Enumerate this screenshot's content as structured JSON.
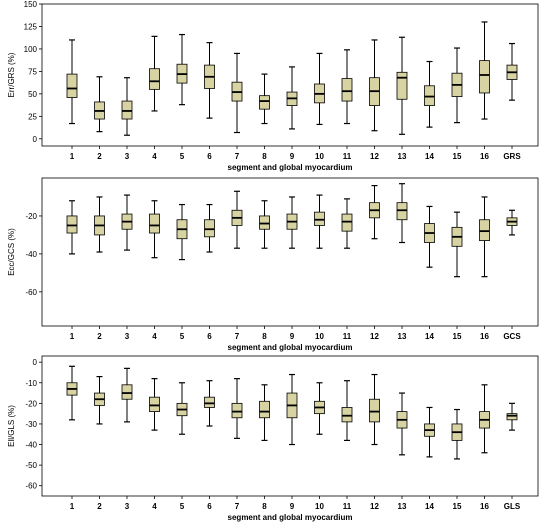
{
  "style": {
    "box_fill": "#d8d3a2",
    "box_stroke": "#000000",
    "median_color": "#000000",
    "frame_color": "#000000"
  },
  "chart_data": [
    {
      "type": "boxplot",
      "xlabel": "segment and global myocardium",
      "ylabel": "Err/GRS (%)",
      "ylim": [
        -8,
        150
      ],
      "yticks": [
        0,
        25,
        50,
        75,
        100,
        125,
        150
      ],
      "grid": false,
      "categories": [
        "1",
        "2",
        "3",
        "4",
        "5",
        "6",
        "7",
        "8",
        "9",
        "10",
        "11",
        "12",
        "13",
        "14",
        "15",
        "16",
        "GRS"
      ],
      "boxes": [
        {
          "min": 17,
          "q1": 46,
          "median": 56,
          "q3": 72,
          "max": 110
        },
        {
          "min": 8,
          "q1": 22,
          "median": 31,
          "q3": 41,
          "max": 69
        },
        {
          "min": 4,
          "q1": 22,
          "median": 31,
          "q3": 42,
          "max": 68
        },
        {
          "min": 31,
          "q1": 55,
          "median": 64,
          "q3": 78,
          "max": 114
        },
        {
          "min": 38,
          "q1": 62,
          "median": 72,
          "q3": 83,
          "max": 116
        },
        {
          "min": 23,
          "q1": 56,
          "median": 69,
          "q3": 82,
          "max": 107
        },
        {
          "min": 7,
          "q1": 42,
          "median": 52,
          "q3": 63,
          "max": 95
        },
        {
          "min": 17,
          "q1": 33,
          "median": 42,
          "q3": 48,
          "max": 72
        },
        {
          "min": 11,
          "q1": 37,
          "median": 45,
          "q3": 52,
          "max": 80
        },
        {
          "min": 16,
          "q1": 40,
          "median": 50,
          "q3": 61,
          "max": 95
        },
        {
          "min": 17,
          "q1": 42,
          "median": 53,
          "q3": 67,
          "max": 99
        },
        {
          "min": 9,
          "q1": 37,
          "median": 53,
          "q3": 68,
          "max": 110
        },
        {
          "min": 5,
          "q1": 44,
          "median": 68,
          "q3": 74,
          "max": 113
        },
        {
          "min": 13,
          "q1": 37,
          "median": 47,
          "q3": 59,
          "max": 86
        },
        {
          "min": 18,
          "q1": 47,
          "median": 60,
          "q3": 73,
          "max": 101
        },
        {
          "min": 22,
          "q1": 51,
          "median": 71,
          "q3": 87,
          "max": 130
        },
        {
          "min": 43,
          "q1": 66,
          "median": 74,
          "q3": 82,
          "max": 106
        }
      ]
    },
    {
      "type": "boxplot",
      "xlabel": "segment and global myocardium",
      "ylabel": "Ecc/GCS (%)",
      "ylim": [
        -78,
        0
      ],
      "yticks": [
        -60,
        -40,
        -20
      ],
      "grid": false,
      "categories": [
        "1",
        "2",
        "3",
        "4",
        "5",
        "6",
        "7",
        "8",
        "9",
        "10",
        "11",
        "12",
        "13",
        "14",
        "15",
        "16",
        "GCS"
      ],
      "boxes": [
        {
          "min": -40,
          "q1": -29,
          "median": -25,
          "q3": -20,
          "max": -12
        },
        {
          "min": -39,
          "q1": -30,
          "median": -25,
          "q3": -20,
          "max": -10
        },
        {
          "min": -38,
          "q1": -27,
          "median": -23,
          "q3": -19,
          "max": -9
        },
        {
          "min": -42,
          "q1": -29,
          "median": -25,
          "q3": -19,
          "max": -12
        },
        {
          "min": -43,
          "q1": -32,
          "median": -27,
          "q3": -22,
          "max": -14
        },
        {
          "min": -39,
          "q1": -31,
          "median": -27,
          "q3": -22,
          "max": -14
        },
        {
          "min": -37,
          "q1": -25,
          "median": -21,
          "q3": -17,
          "max": -7
        },
        {
          "min": -37,
          "q1": -27,
          "median": -24,
          "q3": -20,
          "max": -12
        },
        {
          "min": -37,
          "q1": -27,
          "median": -23,
          "q3": -19,
          "max": -10
        },
        {
          "min": -37,
          "q1": -25,
          "median": -22,
          "q3": -18,
          "max": -9
        },
        {
          "min": -37,
          "q1": -28,
          "median": -23,
          "q3": -19,
          "max": -11
        },
        {
          "min": -32,
          "q1": -21,
          "median": -17,
          "q3": -13,
          "max": -4
        },
        {
          "min": -34,
          "q1": -22,
          "median": -17,
          "q3": -13,
          "max": -3
        },
        {
          "min": -47,
          "q1": -34,
          "median": -29,
          "q3": -24,
          "max": -15
        },
        {
          "min": -52,
          "q1": -36,
          "median": -31,
          "q3": -26,
          "max": -18
        },
        {
          "min": -52,
          "q1": -33,
          "median": -28,
          "q3": -22,
          "max": -10
        },
        {
          "min": -30,
          "q1": -25,
          "median": -23,
          "q3": -21,
          "max": -17
        }
      ]
    },
    {
      "type": "boxplot",
      "xlabel": "segment and global myocardium",
      "ylabel": "Ell/GLS (%)",
      "ylim": [
        -65,
        3
      ],
      "yticks": [
        -60,
        -50,
        -40,
        -30,
        -20,
        -10,
        0
      ],
      "grid": false,
      "categories": [
        "1",
        "2",
        "3",
        "4",
        "5",
        "6",
        "7",
        "8",
        "9",
        "10",
        "11",
        "12",
        "13",
        "14",
        "15",
        "16",
        "GLS"
      ],
      "boxes": [
        {
          "min": -28,
          "q1": -16,
          "median": -13,
          "q3": -10,
          "max": -2
        },
        {
          "min": -30,
          "q1": -21,
          "median": -18,
          "q3": -15,
          "max": -7
        },
        {
          "min": -29,
          "q1": -18,
          "median": -15,
          "q3": -11,
          "max": -3
        },
        {
          "min": -33,
          "q1": -24,
          "median": -21,
          "q3": -17,
          "max": -8
        },
        {
          "min": -35,
          "q1": -26,
          "median": -23,
          "q3": -20,
          "max": -10
        },
        {
          "min": -31,
          "q1": -22,
          "median": -20,
          "q3": -17,
          "max": -9
        },
        {
          "min": -37,
          "q1": -27,
          "median": -24,
          "q3": -20,
          "max": -8
        },
        {
          "min": -38,
          "q1": -27,
          "median": -24,
          "q3": -19,
          "max": -11
        },
        {
          "min": -40,
          "q1": -27,
          "median": -21,
          "q3": -15,
          "max": -6
        },
        {
          "min": -35,
          "q1": -25,
          "median": -22,
          "q3": -19,
          "max": -10
        },
        {
          "min": -38,
          "q1": -29,
          "median": -26,
          "q3": -22,
          "max": -9
        },
        {
          "min": -40,
          "q1": -29,
          "median": -24,
          "q3": -18,
          "max": -6
        },
        {
          "min": -45,
          "q1": -32,
          "median": -28,
          "q3": -24,
          "max": -15
        },
        {
          "min": -46,
          "q1": -36,
          "median": -33,
          "q3": -30,
          "max": -22
        },
        {
          "min": -47,
          "q1": -38,
          "median": -34,
          "q3": -30,
          "max": -23
        },
        {
          "min": -44,
          "q1": -32,
          "median": -28,
          "q3": -24,
          "max": -11
        },
        {
          "min": -33,
          "q1": -28,
          "median": -26,
          "q3": -25,
          "max": -20
        }
      ]
    }
  ]
}
